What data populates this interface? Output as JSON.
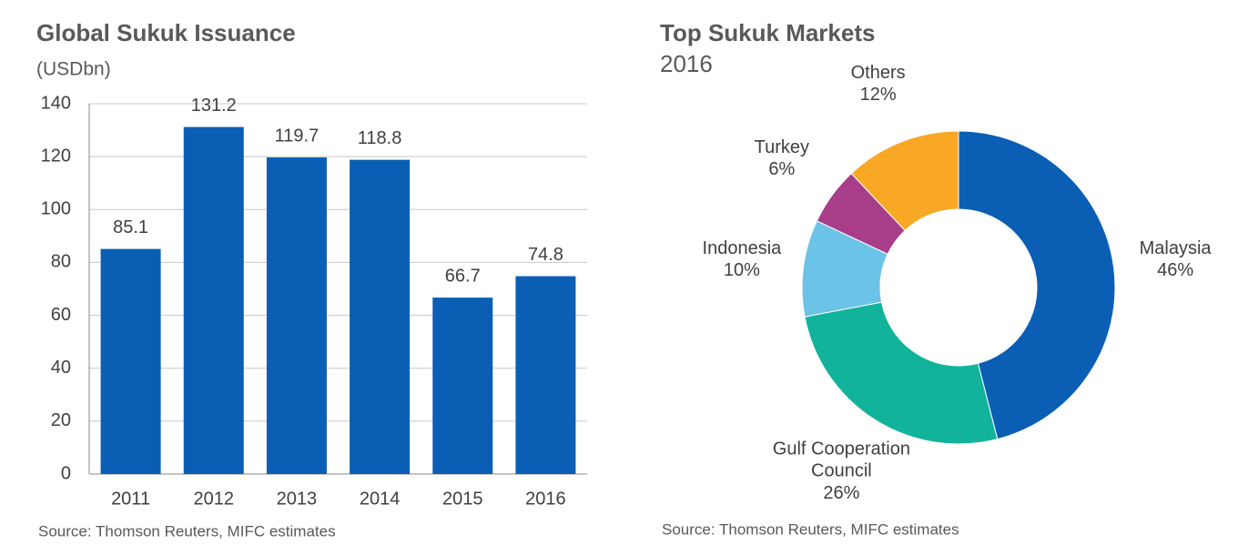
{
  "chart_data": [
    {
      "type": "bar",
      "title": "Global Sukuk Issuance",
      "subtitle": "(USDbn)",
      "categories": [
        "2011",
        "2012",
        "2013",
        "2014",
        "2015",
        "2016"
      ],
      "values": [
        85.1,
        131.2,
        119.7,
        118.8,
        66.7,
        74.8
      ],
      "color": "#0a5fb4",
      "ylim": [
        0,
        140
      ],
      "yticks": [
        0,
        20,
        40,
        60,
        80,
        100,
        120,
        140
      ],
      "grid": true,
      "source": "Source: Thomson Reuters, MIFC estimates"
    },
    {
      "type": "donut",
      "title": "Top Sukuk Markets",
      "subtitle": "2016",
      "categories": [
        "Malaysia",
        "Gulf Cooperation Council",
        "Indonesia",
        "Turkey",
        "Others"
      ],
      "values": [
        46,
        26,
        10,
        6,
        12
      ],
      "value_labels": [
        "46%",
        "26%",
        "10%",
        "6%",
        "12%"
      ],
      "colors": [
        "#0a5fb4",
        "#12b39b",
        "#6cc3e8",
        "#a83e8a",
        "#f9a825"
      ],
      "source": "Source: Thomson Reuters, MIFC estimates"
    }
  ]
}
